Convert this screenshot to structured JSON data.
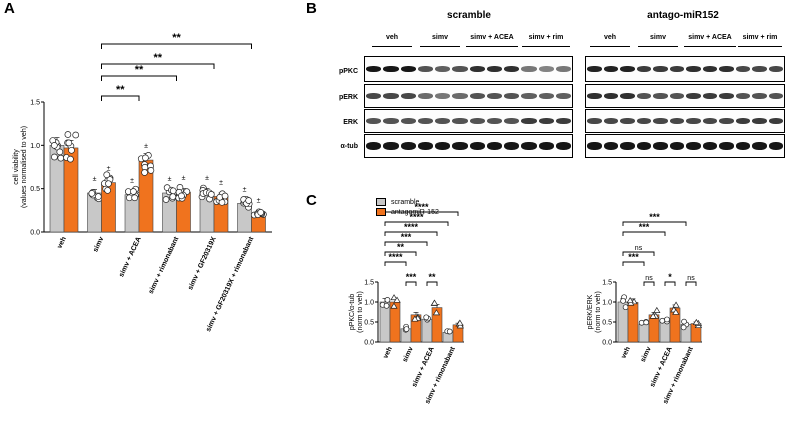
{
  "panels": {
    "a": "A",
    "b": "B",
    "c": "C"
  },
  "colors": {
    "scramble": "#c8c8c8",
    "antago": "#f0731e",
    "axis": "#000000"
  },
  "chart_data": [
    {
      "id": "A",
      "type": "bar",
      "ylabel": "cell viability",
      "ylabel2": "(values normalised to veh)",
      "ylim": [
        0,
        1.5
      ],
      "yticks": [
        "0.0",
        "0.5",
        "1.0",
        "1.5"
      ],
      "categories": [
        "veh",
        "simv",
        "simv + ACEA",
        "simv + rimonabant",
        "simv + GF20319X",
        "simv + GF20319X + rimonabant"
      ],
      "series": [
        {
          "key": "scramble",
          "values": [
            1.0,
            0.45,
            0.43,
            0.45,
            0.46,
            0.33
          ]
        },
        {
          "key": "antago",
          "values": [
            0.97,
            0.57,
            0.83,
            0.46,
            0.41,
            0.2
          ]
        }
      ],
      "plus_minus": "±",
      "significance": [
        {
          "label": "**",
          "from": 1,
          "to": 5
        },
        {
          "label": "**",
          "from": 1,
          "to": 4
        },
        {
          "label": "**",
          "from": 1,
          "to": 3
        },
        {
          "label": "**",
          "from": 1,
          "to": 2
        }
      ]
    },
    {
      "id": "C1",
      "type": "bar",
      "ylabel": "pPKC/α-tub",
      "ylabel2": "(norm to veh)",
      "ylim": [
        0,
        1.5
      ],
      "yticks": [
        "0.0",
        "0.5",
        "1.0",
        "1.5"
      ],
      "categories": [
        "veh",
        "simv",
        "simv + ACEA",
        "simv + rimonabant"
      ],
      "series": [
        {
          "name": "scramble",
          "key": "scramble",
          "values": [
            1.0,
            0.33,
            0.57,
            0.24
          ]
        },
        {
          "name": "antagomiR-152",
          "key": "antago",
          "values": [
            1.0,
            0.68,
            0.86,
            0.43
          ]
        }
      ],
      "significance": [
        {
          "label": "****",
          "x1": "0a",
          "x2": "3b",
          "level": 8
        },
        {
          "label": "****",
          "x1": "0a",
          "x2": "3a",
          "level": 7
        },
        {
          "label": "****",
          "x1": "0a",
          "x2": "2b",
          "level": 6
        },
        {
          "label": "***",
          "x1": "0a",
          "x2": "2a",
          "level": 5
        },
        {
          "label": "**",
          "x1": "0a",
          "x2": "1b",
          "level": 4
        },
        {
          "label": "****",
          "x1": "0a",
          "x2": "1a",
          "level": 3
        },
        {
          "label": "***",
          "x1": "1a",
          "x2": "1b",
          "level": 1
        },
        {
          "label": "**",
          "x1": "2a",
          "x2": "2b",
          "level": 1
        }
      ]
    },
    {
      "id": "C2",
      "type": "bar",
      "ylabel": "pERK/ERK",
      "ylabel2": "(norm to veh)",
      "ylim": [
        0,
        1.5
      ],
      "yticks": [
        "0.0",
        "0.5",
        "1.0",
        "1.5"
      ],
      "categories": [
        "veh",
        "simv",
        "simv + ACEA",
        "simv + rimonabant"
      ],
      "series": [
        {
          "key": "scramble",
          "values": [
            1.0,
            0.45,
            0.53,
            0.44
          ]
        },
        {
          "key": "antago",
          "values": [
            0.99,
            0.68,
            0.85,
            0.46
          ]
        }
      ],
      "significance": [
        {
          "label": "***",
          "x1": "0a",
          "x2": "3a",
          "level": 7
        },
        {
          "label": "***",
          "x1": "0a",
          "x2": "2a",
          "level": 6
        },
        {
          "label": "ns",
          "x1": "0a",
          "x2": "1b",
          "level": 4
        },
        {
          "label": "***",
          "x1": "0a",
          "x2": "1a",
          "level": 3
        },
        {
          "label": "ns",
          "x1": "1a",
          "x2": "1b",
          "level": 1
        },
        {
          "label": "*",
          "x1": "2a",
          "x2": "2b",
          "level": 1
        },
        {
          "label": "ns",
          "x1": "3a",
          "x2": "3b",
          "level": 1
        }
      ]
    }
  ],
  "blots": {
    "scramble_title": "scramble",
    "antago_title": "antago-miR152",
    "conditions": [
      "veh",
      "simv",
      "simv + ACEA",
      "simv + rim"
    ],
    "rows": [
      "pPKC",
      "pERK",
      "ERK",
      "α-tub"
    ]
  },
  "legend": {
    "scramble": "scramble",
    "antago": "antagomiR-152"
  }
}
